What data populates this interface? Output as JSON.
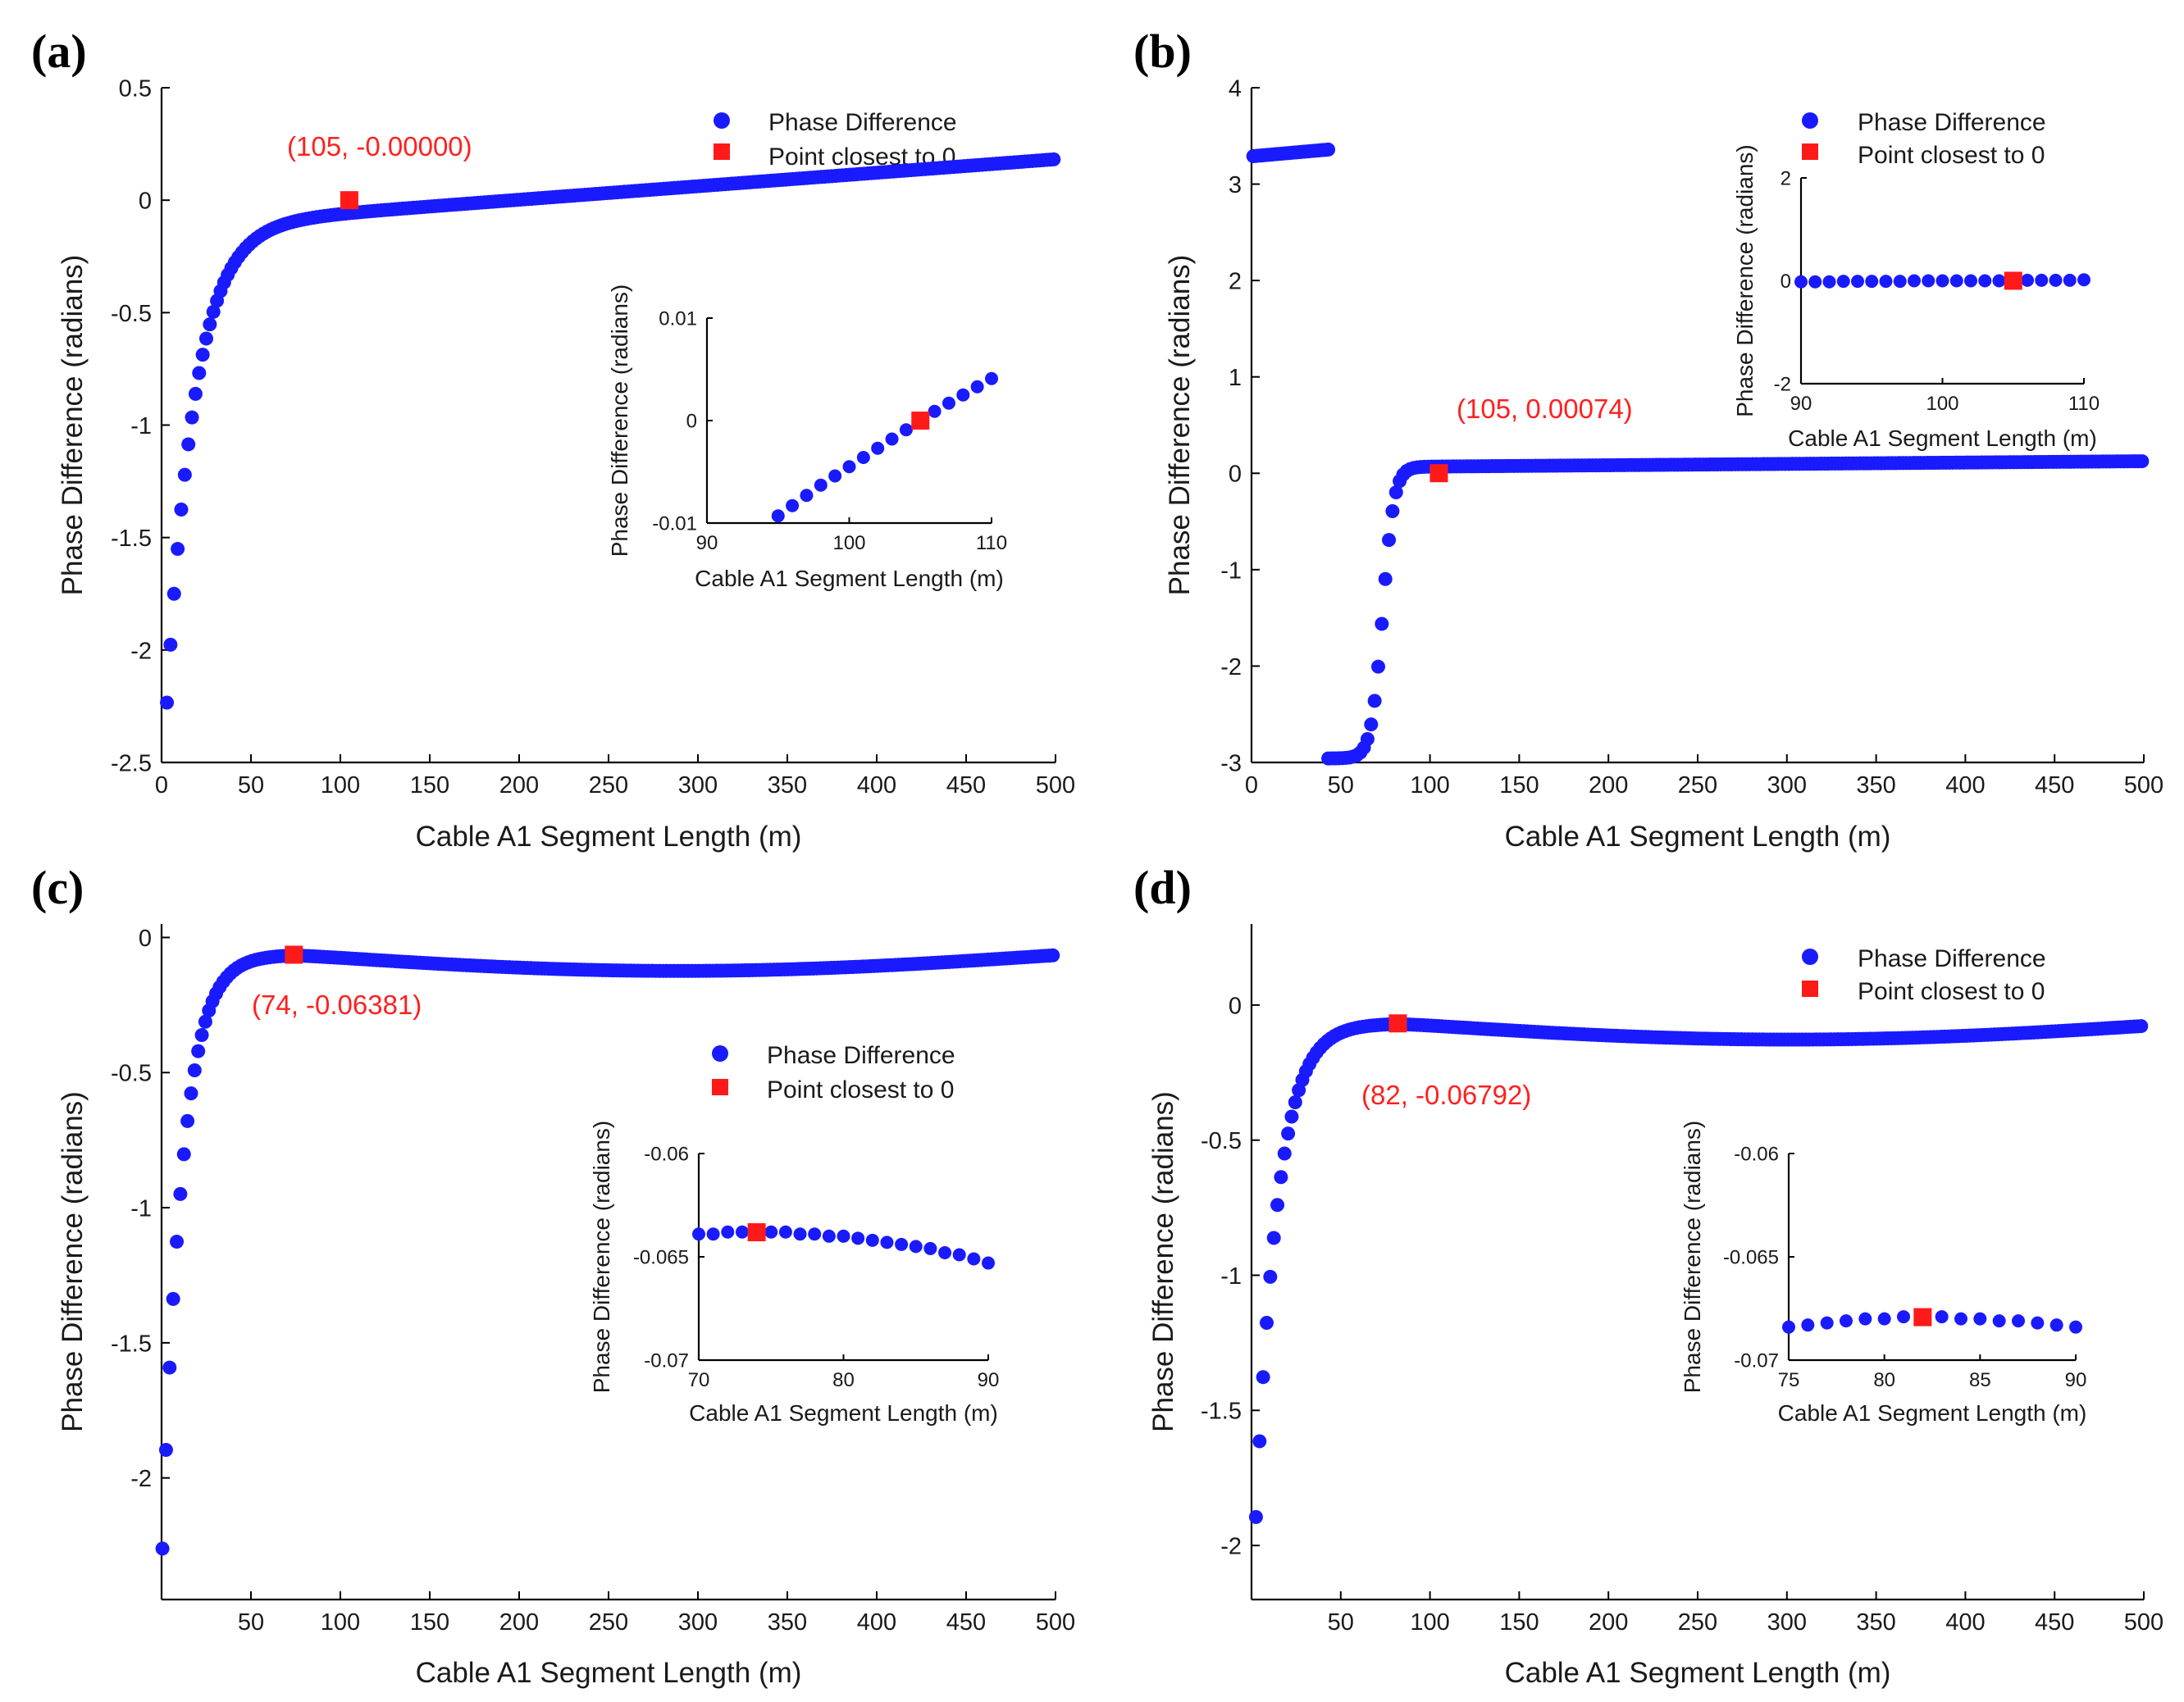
{
  "colors": {
    "series": "#1a1aff",
    "marker": "#ff1a1a",
    "annotation": "#ff2020",
    "axis": "#000000"
  },
  "legend": {
    "series_label": "Phase Difference",
    "marker_label": "Point closest to 0"
  },
  "chart_data": [
    {
      "panel": "(a)",
      "type": "scatter",
      "xlabel": "Cable A1 Segment Length (m)",
      "ylabel": "Phase Difference (radians)",
      "xlim": [
        0,
        500
      ],
      "ylim": [
        -2.5,
        0.5
      ],
      "xticks": [
        0,
        50,
        100,
        150,
        200,
        250,
        300,
        350,
        400,
        450,
        500
      ],
      "xtick_labels": [
        "0",
        "50",
        "100",
        "150",
        "200",
        "250",
        "300",
        "350",
        "400",
        "450",
        "500"
      ],
      "yticks": [
        -2.5,
        -2,
        -1.5,
        -1,
        -0.5,
        0,
        0.5
      ],
      "ytick_labels": [
        "-2.5",
        "-2",
        "-1.5",
        "-1",
        "-0.5",
        "0",
        "0.5"
      ],
      "curve": {
        "kind": "a",
        "x_start": 1,
        "x_end": 500,
        "step": 2
      },
      "marker": [
        105,
        0
      ],
      "annotation": "(105, -0.00000)",
      "legend_position": "top-right",
      "inset": {
        "xlabel": "Cable A1 Segment Length (m)",
        "ylabel": "Phase Difference (radians)",
        "xlim": [
          90,
          110
        ],
        "ylim": [
          -0.01,
          0.01
        ],
        "xticks": [
          90,
          100,
          110
        ],
        "xtick_labels": [
          "90",
          "100",
          "110"
        ],
        "yticks": [
          -0.01,
          0,
          0.01
        ],
        "ytick_labels": [
          "-0.01",
          "0",
          "0.01"
        ],
        "points_x": [
          95,
          96,
          97,
          98,
          99,
          100,
          101,
          102,
          103,
          104,
          106,
          107,
          108,
          109,
          110
        ],
        "points_y": [
          -0.0093,
          -0.0083,
          -0.0073,
          -0.0063,
          -0.0054,
          -0.0045,
          -0.0036,
          -0.0027,
          -0.0018,
          -0.0009,
          0.0009,
          0.0017,
          0.0025,
          0.0033,
          0.0041
        ],
        "marker": [
          105,
          0
        ]
      }
    },
    {
      "panel": "(b)",
      "type": "scatter",
      "xlabel": "Cable A1 Segment Length (m)",
      "ylabel": "Phase Difference (radians)",
      "xlim": [
        0,
        500
      ],
      "ylim": [
        -3,
        4
      ],
      "xticks": [
        0,
        50,
        100,
        150,
        200,
        250,
        300,
        350,
        400,
        450,
        500
      ],
      "xtick_labels": [
        "0",
        "50",
        "100",
        "150",
        "200",
        "250",
        "300",
        "350",
        "400",
        "450",
        "500"
      ],
      "yticks": [
        -3,
        -2,
        -1,
        0,
        1,
        2,
        3,
        4
      ],
      "ytick_labels": [
        "-3",
        "-2",
        "-1",
        "0",
        "1",
        "2",
        "3",
        "4"
      ],
      "upper_branch": {
        "x_start": 1,
        "x_end": 44,
        "step": 1.5,
        "y_start": 3.29,
        "y_end": 3.36
      },
      "curve": {
        "kind": "b",
        "x_start": 43,
        "x_end": 500,
        "step": 2
      },
      "marker": [
        105,
        0.00074
      ],
      "annotation": "(105, 0.00074)",
      "legend_position": "top-right",
      "inset": {
        "xlabel": "Cable A1 Segment Length (m)",
        "ylabel": "Phase Difference (radians)",
        "xlim": [
          90,
          110
        ],
        "ylim": [
          -2,
          2
        ],
        "xticks": [
          90,
          100,
          110
        ],
        "xtick_labels": [
          "90",
          "100",
          "110"
        ],
        "yticks": [
          -2,
          0,
          2
        ],
        "ytick_labels": [
          "-2",
          "0",
          "2"
        ],
        "points_x": [
          90,
          91,
          92,
          93,
          94,
          95,
          96,
          97,
          98,
          99,
          100,
          101,
          102,
          103,
          104,
          106,
          107,
          108,
          109,
          110
        ],
        "points_y": [
          -0.02,
          -0.02,
          -0.02,
          -0.01,
          -0.01,
          -0.01,
          -0.01,
          -0.01,
          0,
          0,
          0,
          0,
          0,
          0,
          0,
          0.01,
          0.01,
          0.01,
          0.01,
          0.02
        ],
        "marker": [
          105,
          0.00074
        ]
      }
    },
    {
      "panel": "(c)",
      "type": "scatter",
      "xlabel": "Cable A1 Segment Length (m)",
      "ylabel": "Phase Difference (radians)",
      "xlim": [
        0,
        500
      ],
      "ylim": [
        -2.45,
        0.05
      ],
      "xticks": [
        50,
        100,
        150,
        200,
        250,
        300,
        350,
        400,
        450,
        500
      ],
      "xtick_labels": [
        "50",
        "100",
        "150",
        "200",
        "250",
        "300",
        "350",
        "400",
        "450",
        "500"
      ],
      "yticks": [
        -2,
        -1.5,
        -1,
        -0.5,
        0
      ],
      "ytick_labels": [
        "-2",
        "-1.5",
        "-1",
        "-0.5",
        "0"
      ],
      "curve": {
        "kind": "c",
        "x_start": 0.5,
        "x_end": 500,
        "step": 2
      },
      "marker": [
        74,
        -0.06381
      ],
      "annotation": "(74, -0.06381)",
      "legend_position": "center-right",
      "inset": {
        "xlabel": "Cable A1 Segment Length (m)",
        "ylabel": "Phase Difference (radians)",
        "xlim": [
          70,
          90
        ],
        "ylim": [
          -0.07,
          -0.06
        ],
        "xticks": [
          70,
          80,
          90
        ],
        "xtick_labels": [
          "70",
          "80",
          "90"
        ],
        "yticks": [
          -0.07,
          -0.065,
          -0.06
        ],
        "ytick_labels": [
          "-0.07",
          "-0.065",
          "-0.06"
        ],
        "points_x": [
          70,
          71,
          72,
          73,
          75,
          76,
          77,
          78,
          79,
          80,
          81,
          82,
          83,
          84,
          85,
          86,
          87,
          88,
          89,
          90
        ],
        "points_y": [
          -0.0639,
          -0.0639,
          -0.0638,
          -0.0638,
          -0.0638,
          -0.0638,
          -0.0639,
          -0.0639,
          -0.064,
          -0.064,
          -0.0641,
          -0.0642,
          -0.0643,
          -0.0644,
          -0.0645,
          -0.0646,
          -0.0648,
          -0.0649,
          -0.0651,
          -0.0653
        ],
        "marker": [
          74,
          -0.06381
        ]
      }
    },
    {
      "panel": "(d)",
      "type": "scatter",
      "xlabel": "Cable A1 Segment Length (m)",
      "ylabel": "Phase Difference (radians)",
      "xlim": [
        0,
        500
      ],
      "ylim": [
        -2.2,
        0.3
      ],
      "xticks": [
        50,
        100,
        150,
        200,
        250,
        300,
        350,
        400,
        450,
        500
      ],
      "xtick_labels": [
        "50",
        "100",
        "150",
        "200",
        "250",
        "300",
        "350",
        "400",
        "450",
        "500"
      ],
      "yticks": [
        -2,
        -1.5,
        -1,
        -0.5,
        0
      ],
      "ytick_labels": [
        "-2",
        "-1.5",
        "-1",
        "-0.5",
        "0"
      ],
      "curve": {
        "kind": "d",
        "x_start": 0.5,
        "x_end": 500,
        "step": 2
      },
      "marker": [
        82,
        -0.06792
      ],
      "annotation": "(82, -0.06792)",
      "legend_position": "top-right",
      "inset": {
        "xlabel": "Cable A1 Segment Length (m)",
        "ylabel": "Phase Difference (radians)",
        "xlim": [
          75,
          90
        ],
        "ylim": [
          -0.07,
          -0.06
        ],
        "xticks": [
          75,
          80,
          85,
          90
        ],
        "xtick_labels": [
          "75",
          "80",
          "85",
          "90"
        ],
        "yticks": [
          -0.07,
          -0.065,
          -0.06
        ],
        "ytick_labels": [
          "-0.07",
          "-0.065",
          "-0.06"
        ],
        "points_x": [
          75,
          76,
          77,
          78,
          79,
          80,
          81,
          83,
          84,
          85,
          86,
          87,
          88,
          89,
          90
        ],
        "points_y": [
          -0.0684,
          -0.0683,
          -0.0682,
          -0.0681,
          -0.068,
          -0.068,
          -0.0679,
          -0.0679,
          -0.068,
          -0.068,
          -0.0681,
          -0.0681,
          -0.0682,
          -0.0683,
          -0.0684
        ],
        "marker": [
          82,
          -0.06792
        ]
      }
    }
  ]
}
